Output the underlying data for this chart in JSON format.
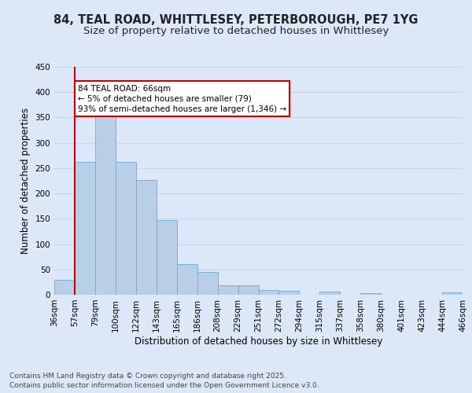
{
  "title_line1": "84, TEAL ROAD, WHITTLESEY, PETERBOROUGH, PE7 1YG",
  "title_line2": "Size of property relative to detached houses in Whittlesey",
  "xlabel": "Distribution of detached houses by size in Whittlesey",
  "ylabel": "Number of detached properties",
  "footnote": "Contains HM Land Registry data © Crown copyright and database right 2025.\nContains public sector information licensed under the Open Government Licence v3.0.",
  "bar_values": [
    30,
    263,
    370,
    262,
    226,
    148,
    60,
    45,
    18,
    18,
    10,
    8,
    0,
    6,
    0,
    3,
    0,
    0,
    0,
    5
  ],
  "bin_labels": [
    "36sqm",
    "57sqm",
    "79sqm",
    "100sqm",
    "122sqm",
    "143sqm",
    "165sqm",
    "186sqm",
    "208sqm",
    "229sqm",
    "251sqm",
    "272sqm",
    "294sqm",
    "315sqm",
    "337sqm",
    "358sqm",
    "380sqm",
    "401sqm",
    "423sqm",
    "444sqm",
    "466sqm"
  ],
  "bar_color": "#b8cfe8",
  "bar_edge_color": "#6aaad4",
  "grid_color": "#c8d4e8",
  "background_color": "#dce8f8",
  "annotation_box_color": "#ffffff",
  "annotation_border_color": "#cc0000",
  "vline_color": "#cc0000",
  "annotation_text": "84 TEAL ROAD: 66sqm\n← 5% of detached houses are smaller (79)\n93% of semi-detached houses are larger (1,346) →",
  "ylim": [
    0,
    450
  ],
  "yticks": [
    0,
    50,
    100,
    150,
    200,
    250,
    300,
    350,
    400,
    450
  ],
  "title_fontsize": 10.5,
  "subtitle_fontsize": 9.5,
  "axis_label_fontsize": 8.5,
  "tick_fontsize": 7.5,
  "annotation_fontsize": 7.5,
  "footnote_fontsize": 6.5
}
